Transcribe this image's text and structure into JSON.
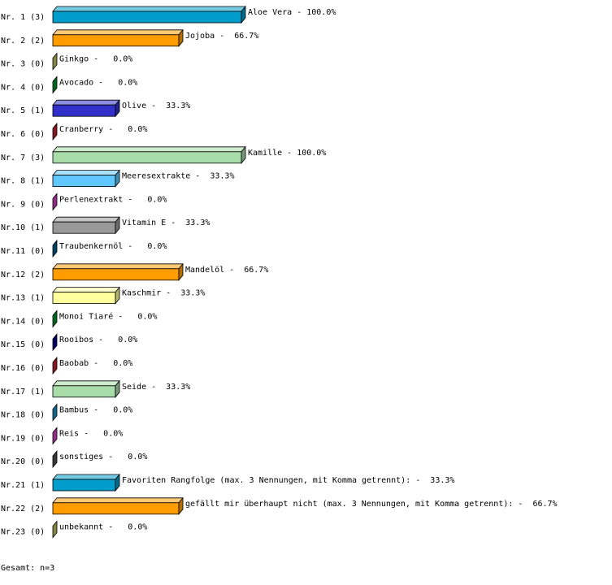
{
  "chart_data": {
    "type": "bar",
    "orientation": "horizontal",
    "style": "3d",
    "unit": "%",
    "xlim": [
      0,
      100
    ],
    "grid": false,
    "categories": [
      "Nr. 1 (3)",
      "Nr. 2 (2)",
      "Nr. 3 (0)",
      "Nr. 4 (0)",
      "Nr. 5 (1)",
      "Nr. 6 (0)",
      "Nr. 7 (3)",
      "Nr. 8 (1)",
      "Nr. 9 (0)",
      "Nr.10 (1)",
      "Nr.11 (0)",
      "Nr.12 (2)",
      "Nr.13 (1)",
      "Nr.14 (0)",
      "Nr.15 (0)",
      "Nr.16 (0)",
      "Nr.17 (1)",
      "Nr.18 (0)",
      "Nr.19 (0)",
      "Nr.20 (0)",
      "Nr.21 (1)",
      "Nr.22 (2)",
      "Nr.23 (0)"
    ],
    "counts": [
      3,
      2,
      0,
      0,
      1,
      0,
      3,
      1,
      0,
      1,
      0,
      2,
      1,
      0,
      0,
      0,
      1,
      0,
      0,
      0,
      1,
      2,
      0
    ],
    "values": [
      100.0,
      66.7,
      0.0,
      0.0,
      33.3,
      0.0,
      100.0,
      33.3,
      0.0,
      33.3,
      0.0,
      66.7,
      33.3,
      0.0,
      0.0,
      0.0,
      33.3,
      0.0,
      0.0,
      0.0,
      33.3,
      66.7,
      0.0
    ],
    "bar_labels": [
      "Aloe Vera - 100.0%",
      "Jojoba -  66.7%",
      "Ginkgo -   0.0%",
      "Avocado -   0.0%",
      "Olive -  33.3%",
      "Cranberry -   0.0%",
      "Kamille - 100.0%",
      "Meeresextrakte -  33.3%",
      "Perlenextrakt -   0.0%",
      "Vitamin E -  33.3%",
      "Traubenkernöl -   0.0%",
      "Mandelöl -  66.7%",
      "Kaschmir -  33.3%",
      "Monoi Tiaré -   0.0%",
      "Rooibos -   0.0%",
      "Baobab -   0.0%",
      "Seide -  33.3%",
      "Bambus -   0.0%",
      "Reis -   0.0%",
      "sonstiges -   0.0%",
      "Favoriten Rangfolge (max. 3 Nennungen, mit Komma getrennt): -  33.3%",
      "gefällt mir überhaupt nicht (max. 3 Nennungen, mit Komma getrennt): -  66.7%",
      "unbekannt -   0.0%"
    ],
    "colors": [
      "#009ccc",
      "#ff9c00",
      "#c0c060",
      "#009030",
      "#3030c8",
      "#c02030",
      "#a8dca8",
      "#60c8ff",
      "#d040c0",
      "#999999",
      "#005c90",
      "#ff9c00",
      "#ffffa0",
      "#009030",
      "#000090",
      "#c02030",
      "#a8dca8",
      "#2090c8",
      "#d040c0",
      "#505050",
      "#009ccc",
      "#ff9c00",
      "#c0c060"
    ],
    "footer": "Gesamt: n=3"
  }
}
